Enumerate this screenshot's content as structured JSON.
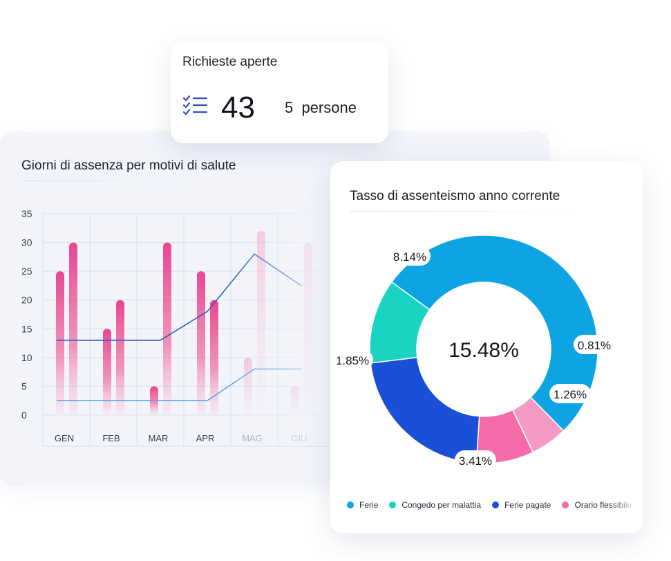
{
  "cards": {
    "absence_chart": {
      "title": "Giorni di assenza per motivi di salute"
    },
    "open_requests": {
      "title": "Richieste aperte",
      "count": "43",
      "people": "5  persone",
      "icon": "checklist-icon"
    },
    "absenteeism": {
      "title": "Tasso di assenteismo anno corrente",
      "center_value": "15.48%"
    }
  },
  "colors": {
    "bar_pink": "#e8468e",
    "line_dark": "#2f5fc4",
    "line_light": "#5aa6de",
    "ferie": "#0ea3e2",
    "congedo": "#18d4c0",
    "ferie_pagate": "#1a50d8",
    "orario_flessibile": "#f56aa8",
    "other": "#f49ac4"
  },
  "chart_data": [
    {
      "type": "bar",
      "title": "Giorni di assenza per motivi di salute",
      "categories": [
        "GEN",
        "FEB",
        "MAR",
        "APR",
        "MAG",
        "GIU"
      ],
      "yticks": [
        "35",
        "30",
        "25",
        "20",
        "15",
        "10",
        "5",
        "0"
      ],
      "ylim": [
        0,
        35
      ],
      "grid": true,
      "series": [
        {
          "kind": "bar",
          "values": [
            25,
            15,
            5,
            25,
            10,
            5
          ]
        },
        {
          "kind": "bar",
          "values": [
            30,
            20,
            30,
            20,
            32,
            30
          ]
        },
        {
          "kind": "line",
          "values": [
            13,
            13,
            13,
            18,
            28,
            22.5
          ]
        },
        {
          "kind": "line",
          "values": [
            2.5,
            2.5,
            2.5,
            2.5,
            8,
            8
          ]
        }
      ]
    },
    {
      "type": "pie",
      "title": "Tasso di assenteismo anno corrente",
      "center_label": "15.48%",
      "slices": [
        {
          "name": "Ferie",
          "value": 8.14,
          "label": "8.14%"
        },
        {
          "name": "",
          "value": 0.81,
          "label": "0.81%"
        },
        {
          "name": "Orario flessibile",
          "value": 1.26,
          "label": "1.26%"
        },
        {
          "name": "Ferie pagate",
          "value": 3.41,
          "label": "3.41%"
        },
        {
          "name": "Congedo per malattia",
          "value": 1.85,
          "label": "1.85%"
        }
      ],
      "legend": [
        "Ferie",
        "Congedo per malattia",
        "Ferie pagate",
        "Orario flessibile"
      ],
      "legend_placement": "bottom"
    }
  ]
}
